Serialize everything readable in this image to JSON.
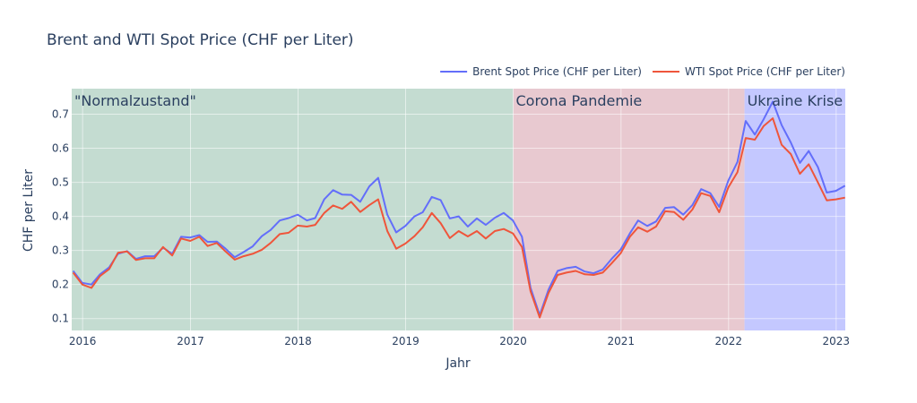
{
  "chart_data": {
    "type": "line",
    "title": "Brent and WTI Spot Price (CHF per Liter)",
    "xlabel": "Jahr",
    "ylabel": "CHF per Liter",
    "xlim": [
      "2015-11-25",
      "2023-02-01"
    ],
    "ylim": [
      0.065,
      0.775
    ],
    "grid": true,
    "legend_position": "top-right",
    "x_ticks": [
      {
        "label": "2016",
        "date": "2016-01-01"
      },
      {
        "label": "2017",
        "date": "2017-01-01"
      },
      {
        "label": "2018",
        "date": "2018-01-01"
      },
      {
        "label": "2019",
        "date": "2019-01-01"
      },
      {
        "label": "2020",
        "date": "2020-01-01"
      },
      {
        "label": "2021",
        "date": "2021-01-01"
      },
      {
        "label": "2022",
        "date": "2022-01-01"
      },
      {
        "label": "2023",
        "date": "2023-01-01"
      }
    ],
    "y_ticks": [
      0.1,
      0.2,
      0.3,
      0.4,
      0.5,
      0.6,
      0.7
    ],
    "regions": [
      {
        "label": "\"Normalzustand\"",
        "start": "2015-11-25",
        "end": "2020-01-01",
        "color": "#c4dcd1"
      },
      {
        "label": "Corona Pandemie",
        "start": "2020-01-01",
        "end": "2022-02-24",
        "color": "#e8c9d0"
      },
      {
        "label": "Ukraine Krise",
        "start": "2022-02-24",
        "end": "2023-02-01",
        "color": "#c4c8ff"
      }
    ],
    "series": [
      {
        "name": "Brent Spot Price (CHF per Liter)",
        "color": "#636efa",
        "points": [
          [
            "2015-11-30",
            0.24
          ],
          [
            "2015-12-31",
            0.205
          ],
          [
            "2016-01-31",
            0.2
          ],
          [
            "2016-02-29",
            0.23
          ],
          [
            "2016-03-31",
            0.25
          ],
          [
            "2016-04-30",
            0.29
          ],
          [
            "2016-05-31",
            0.298
          ],
          [
            "2016-06-30",
            0.275
          ],
          [
            "2016-07-31",
            0.283
          ],
          [
            "2016-08-31",
            0.283
          ],
          [
            "2016-09-30",
            0.308
          ],
          [
            "2016-10-31",
            0.29
          ],
          [
            "2016-11-30",
            0.34
          ],
          [
            "2016-12-31",
            0.338
          ],
          [
            "2017-01-31",
            0.345
          ],
          [
            "2017-02-28",
            0.325
          ],
          [
            "2017-03-31",
            0.326
          ],
          [
            "2017-04-30",
            0.305
          ],
          [
            "2017-05-31",
            0.28
          ],
          [
            "2017-06-30",
            0.295
          ],
          [
            "2017-07-31",
            0.312
          ],
          [
            "2017-08-31",
            0.342
          ],
          [
            "2017-09-30",
            0.36
          ],
          [
            "2017-10-31",
            0.388
          ],
          [
            "2017-11-30",
            0.395
          ],
          [
            "2017-12-31",
            0.405
          ],
          [
            "2018-01-31",
            0.388
          ],
          [
            "2018-02-28",
            0.395
          ],
          [
            "2018-03-31",
            0.45
          ],
          [
            "2018-04-30",
            0.477
          ],
          [
            "2018-05-31",
            0.464
          ],
          [
            "2018-06-30",
            0.463
          ],
          [
            "2018-07-31",
            0.443
          ],
          [
            "2018-08-31",
            0.488
          ],
          [
            "2018-09-30",
            0.513
          ],
          [
            "2018-10-31",
            0.405
          ],
          [
            "2018-11-30",
            0.353
          ],
          [
            "2018-12-31",
            0.372
          ],
          [
            "2019-01-31",
            0.4
          ],
          [
            "2019-02-28",
            0.412
          ],
          [
            "2019-03-31",
            0.457
          ],
          [
            "2019-04-30",
            0.448
          ],
          [
            "2019-05-31",
            0.394
          ],
          [
            "2019-06-30",
            0.4
          ],
          [
            "2019-07-31",
            0.37
          ],
          [
            "2019-08-31",
            0.394
          ],
          [
            "2019-09-30",
            0.375
          ],
          [
            "2019-10-31",
            0.396
          ],
          [
            "2019-11-30",
            0.41
          ],
          [
            "2019-12-31",
            0.388
          ],
          [
            "2020-01-31",
            0.34
          ],
          [
            "2020-02-29",
            0.19
          ],
          [
            "2020-03-31",
            0.11
          ],
          [
            "2020-04-30",
            0.185
          ],
          [
            "2020-05-31",
            0.24
          ],
          [
            "2020-06-30",
            0.248
          ],
          [
            "2020-07-31",
            0.252
          ],
          [
            "2020-08-31",
            0.238
          ],
          [
            "2020-09-30",
            0.233
          ],
          [
            "2020-10-31",
            0.244
          ],
          [
            "2020-11-30",
            0.275
          ],
          [
            "2020-12-31",
            0.303
          ],
          [
            "2021-01-31",
            0.35
          ],
          [
            "2021-02-28",
            0.388
          ],
          [
            "2021-03-31",
            0.372
          ],
          [
            "2021-04-30",
            0.385
          ],
          [
            "2021-05-31",
            0.425
          ],
          [
            "2021-06-30",
            0.427
          ],
          [
            "2021-07-31",
            0.405
          ],
          [
            "2021-08-31",
            0.433
          ],
          [
            "2021-09-30",
            0.48
          ],
          [
            "2021-10-31",
            0.468
          ],
          [
            "2021-11-30",
            0.428
          ],
          [
            "2021-12-31",
            0.505
          ],
          [
            "2022-01-31",
            0.56
          ],
          [
            "2022-02-28",
            0.68
          ],
          [
            "2022-03-31",
            0.64
          ],
          [
            "2022-04-30",
            0.685
          ],
          [
            "2022-05-31",
            0.737
          ],
          [
            "2022-06-30",
            0.668
          ],
          [
            "2022-07-31",
            0.617
          ],
          [
            "2022-08-31",
            0.557
          ],
          [
            "2022-09-30",
            0.592
          ],
          [
            "2022-10-31",
            0.545
          ],
          [
            "2022-11-30",
            0.47
          ],
          [
            "2022-12-31",
            0.475
          ],
          [
            "2023-01-31",
            0.49
          ]
        ]
      },
      {
        "name": "WTI Spot Price (CHF per Liter)",
        "color": "#ef553b",
        "points": [
          [
            "2015-11-30",
            0.235
          ],
          [
            "2015-12-31",
            0.2
          ],
          [
            "2016-01-31",
            0.19
          ],
          [
            "2016-02-29",
            0.225
          ],
          [
            "2016-03-31",
            0.245
          ],
          [
            "2016-04-30",
            0.293
          ],
          [
            "2016-05-31",
            0.297
          ],
          [
            "2016-06-30",
            0.272
          ],
          [
            "2016-07-31",
            0.277
          ],
          [
            "2016-08-31",
            0.277
          ],
          [
            "2016-09-30",
            0.31
          ],
          [
            "2016-10-31",
            0.285
          ],
          [
            "2016-11-30",
            0.335
          ],
          [
            "2016-12-31",
            0.328
          ],
          [
            "2017-01-31",
            0.34
          ],
          [
            "2017-02-28",
            0.313
          ],
          [
            "2017-03-31",
            0.322
          ],
          [
            "2017-04-30",
            0.297
          ],
          [
            "2017-05-31",
            0.273
          ],
          [
            "2017-06-30",
            0.283
          ],
          [
            "2017-07-31",
            0.29
          ],
          [
            "2017-08-31",
            0.302
          ],
          [
            "2017-09-30",
            0.322
          ],
          [
            "2017-10-31",
            0.348
          ],
          [
            "2017-11-30",
            0.352
          ],
          [
            "2017-12-31",
            0.373
          ],
          [
            "2018-01-31",
            0.37
          ],
          [
            "2018-02-28",
            0.375
          ],
          [
            "2018-03-31",
            0.41
          ],
          [
            "2018-04-30",
            0.432
          ],
          [
            "2018-05-31",
            0.422
          ],
          [
            "2018-06-30",
            0.443
          ],
          [
            "2018-07-31",
            0.413
          ],
          [
            "2018-08-31",
            0.433
          ],
          [
            "2018-09-30",
            0.45
          ],
          [
            "2018-10-31",
            0.357
          ],
          [
            "2018-11-30",
            0.305
          ],
          [
            "2018-12-31",
            0.32
          ],
          [
            "2019-01-31",
            0.342
          ],
          [
            "2019-02-28",
            0.368
          ],
          [
            "2019-03-31",
            0.41
          ],
          [
            "2019-04-30",
            0.38
          ],
          [
            "2019-05-31",
            0.336
          ],
          [
            "2019-06-30",
            0.357
          ],
          [
            "2019-07-31",
            0.341
          ],
          [
            "2019-08-31",
            0.357
          ],
          [
            "2019-09-30",
            0.335
          ],
          [
            "2019-10-31",
            0.357
          ],
          [
            "2019-11-30",
            0.363
          ],
          [
            "2019-12-31",
            0.35
          ],
          [
            "2020-01-31",
            0.31
          ],
          [
            "2020-02-29",
            0.18
          ],
          [
            "2020-03-31",
            0.103
          ],
          [
            "2020-04-30",
            0.175
          ],
          [
            "2020-05-31",
            0.228
          ],
          [
            "2020-06-30",
            0.235
          ],
          [
            "2020-07-31",
            0.24
          ],
          [
            "2020-08-31",
            0.23
          ],
          [
            "2020-09-30",
            0.228
          ],
          [
            "2020-10-31",
            0.235
          ],
          [
            "2020-11-30",
            0.262
          ],
          [
            "2020-12-31",
            0.292
          ],
          [
            "2021-01-31",
            0.34
          ],
          [
            "2021-02-28",
            0.368
          ],
          [
            "2021-03-31",
            0.355
          ],
          [
            "2021-04-30",
            0.37
          ],
          [
            "2021-05-31",
            0.415
          ],
          [
            "2021-06-30",
            0.413
          ],
          [
            "2021-07-31",
            0.39
          ],
          [
            "2021-08-31",
            0.42
          ],
          [
            "2021-09-30",
            0.468
          ],
          [
            "2021-10-31",
            0.46
          ],
          [
            "2021-11-30",
            0.412
          ],
          [
            "2021-12-31",
            0.485
          ],
          [
            "2022-01-31",
            0.53
          ],
          [
            "2022-02-28",
            0.63
          ],
          [
            "2022-03-31",
            0.625
          ],
          [
            "2022-04-30",
            0.665
          ],
          [
            "2022-05-31",
            0.688
          ],
          [
            "2022-06-30",
            0.61
          ],
          [
            "2022-07-31",
            0.583
          ],
          [
            "2022-08-31",
            0.525
          ],
          [
            "2022-09-30",
            0.553
          ],
          [
            "2022-10-31",
            0.5
          ],
          [
            "2022-11-30",
            0.447
          ],
          [
            "2022-12-31",
            0.45
          ],
          [
            "2023-01-31",
            0.455
          ]
        ]
      }
    ]
  }
}
